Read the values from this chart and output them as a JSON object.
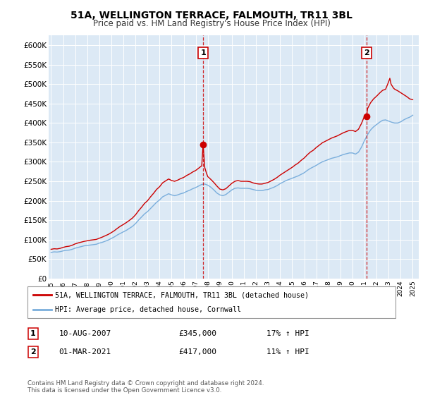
{
  "title": "51A, WELLINGTON TERRACE, FALMOUTH, TR11 3BL",
  "subtitle": "Price paid vs. HM Land Registry's House Price Index (HPI)",
  "ylabel_ticks": [
    "£0",
    "£50K",
    "£100K",
    "£150K",
    "£200K",
    "£250K",
    "£300K",
    "£350K",
    "£400K",
    "£450K",
    "£500K",
    "£550K",
    "£600K"
  ],
  "ytick_values": [
    0,
    50000,
    100000,
    150000,
    200000,
    250000,
    300000,
    350000,
    400000,
    450000,
    500000,
    550000,
    600000
  ],
  "ylim": [
    0,
    625000
  ],
  "xlim_start": 1994.8,
  "xlim_end": 2025.5,
  "xtick_years": [
    1995,
    1996,
    1997,
    1998,
    1999,
    2000,
    2001,
    2002,
    2003,
    2004,
    2005,
    2006,
    2007,
    2008,
    2009,
    2010,
    2011,
    2012,
    2013,
    2014,
    2015,
    2016,
    2017,
    2018,
    2019,
    2020,
    2021,
    2022,
    2023,
    2024,
    2025
  ],
  "background_color": "#dce9f5",
  "sale1_x": 2007.61,
  "sale1_y": 345000,
  "sale1_label": "1",
  "sale1_date": "10-AUG-2007",
  "sale1_price": "£345,000",
  "sale1_hpi": "17% ↑ HPI",
  "sale2_x": 2021.17,
  "sale2_y": 417000,
  "sale2_label": "2",
  "sale2_date": "01-MAR-2021",
  "sale2_price": "£417,000",
  "sale2_hpi": "11% ↑ HPI",
  "legend_red": "51A, WELLINGTON TERRACE, FALMOUTH, TR11 3BL (detached house)",
  "legend_blue": "HPI: Average price, detached house, Cornwall",
  "footer": "Contains HM Land Registry data © Crown copyright and database right 2024.\nThis data is licensed under the Open Government Licence v3.0.",
  "red_color": "#cc0000",
  "blue_color": "#7aaedc",
  "dot_color": "#cc0000",
  "hpi_base_points": [
    [
      1995.0,
      67000
    ],
    [
      1995.25,
      68500
    ],
    [
      1995.5,
      68000
    ],
    [
      1995.75,
      69000
    ],
    [
      1996.0,
      71000
    ],
    [
      1996.25,
      72500
    ],
    [
      1996.5,
      73000
    ],
    [
      1996.75,
      75000
    ],
    [
      1997.0,
      78000
    ],
    [
      1997.25,
      80000
    ],
    [
      1997.5,
      82000
    ],
    [
      1997.75,
      84000
    ],
    [
      1998.0,
      85000
    ],
    [
      1998.25,
      86000
    ],
    [
      1998.5,
      87000
    ],
    [
      1998.75,
      88000
    ],
    [
      1999.0,
      91000
    ],
    [
      1999.25,
      93000
    ],
    [
      1999.5,
      96000
    ],
    [
      1999.75,
      99000
    ],
    [
      2000.0,
      103000
    ],
    [
      2000.25,
      107000
    ],
    [
      2000.5,
      112000
    ],
    [
      2000.75,
      116000
    ],
    [
      2001.0,
      120000
    ],
    [
      2001.25,
      124000
    ],
    [
      2001.5,
      129000
    ],
    [
      2001.75,
      134000
    ],
    [
      2002.0,
      141000
    ],
    [
      2002.25,
      150000
    ],
    [
      2002.5,
      158000
    ],
    [
      2002.75,
      166000
    ],
    [
      2003.0,
      172000
    ],
    [
      2003.25,
      180000
    ],
    [
      2003.5,
      188000
    ],
    [
      2003.75,
      196000
    ],
    [
      2004.0,
      202000
    ],
    [
      2004.25,
      210000
    ],
    [
      2004.5,
      214000
    ],
    [
      2004.75,
      218000
    ],
    [
      2005.0,
      215000
    ],
    [
      2005.25,
      213000
    ],
    [
      2005.5,
      215000
    ],
    [
      2005.75,
      218000
    ],
    [
      2006.0,
      220000
    ],
    [
      2006.25,
      224000
    ],
    [
      2006.5,
      227000
    ],
    [
      2006.75,
      231000
    ],
    [
      2007.0,
      234000
    ],
    [
      2007.25,
      238000
    ],
    [
      2007.5,
      242000
    ],
    [
      2007.75,
      243000
    ],
    [
      2008.0,
      240000
    ],
    [
      2008.25,
      235000
    ],
    [
      2008.5,
      228000
    ],
    [
      2008.75,
      220000
    ],
    [
      2009.0,
      215000
    ],
    [
      2009.25,
      213000
    ],
    [
      2009.5,
      216000
    ],
    [
      2009.75,
      222000
    ],
    [
      2010.0,
      228000
    ],
    [
      2010.25,
      232000
    ],
    [
      2010.5,
      233000
    ],
    [
      2010.75,
      232000
    ],
    [
      2011.0,
      232000
    ],
    [
      2011.25,
      232000
    ],
    [
      2011.5,
      231000
    ],
    [
      2011.75,
      229000
    ],
    [
      2012.0,
      227000
    ],
    [
      2012.25,
      226000
    ],
    [
      2012.5,
      226000
    ],
    [
      2012.75,
      228000
    ],
    [
      2013.0,
      229000
    ],
    [
      2013.25,
      232000
    ],
    [
      2013.5,
      235000
    ],
    [
      2013.75,
      239000
    ],
    [
      2014.0,
      244000
    ],
    [
      2014.25,
      248000
    ],
    [
      2014.5,
      252000
    ],
    [
      2014.75,
      255000
    ],
    [
      2015.0,
      258000
    ],
    [
      2015.25,
      261000
    ],
    [
      2015.5,
      264000
    ],
    [
      2015.75,
      268000
    ],
    [
      2016.0,
      272000
    ],
    [
      2016.25,
      278000
    ],
    [
      2016.5,
      283000
    ],
    [
      2016.75,
      287000
    ],
    [
      2017.0,
      291000
    ],
    [
      2017.25,
      296000
    ],
    [
      2017.5,
      300000
    ],
    [
      2017.75,
      303000
    ],
    [
      2018.0,
      306000
    ],
    [
      2018.25,
      309000
    ],
    [
      2018.5,
      311000
    ],
    [
      2018.75,
      313000
    ],
    [
      2019.0,
      316000
    ],
    [
      2019.25,
      319000
    ],
    [
      2019.5,
      321000
    ],
    [
      2019.75,
      323000
    ],
    [
      2020.0,
      323000
    ],
    [
      2020.25,
      320000
    ],
    [
      2020.5,
      325000
    ],
    [
      2020.75,
      338000
    ],
    [
      2021.0,
      355000
    ],
    [
      2021.25,
      370000
    ],
    [
      2021.5,
      382000
    ],
    [
      2021.75,
      390000
    ],
    [
      2022.0,
      396000
    ],
    [
      2022.25,
      402000
    ],
    [
      2022.5,
      407000
    ],
    [
      2022.75,
      408000
    ],
    [
      2023.0,
      405000
    ],
    [
      2023.25,
      402000
    ],
    [
      2023.5,
      400000
    ],
    [
      2023.75,
      400000
    ],
    [
      2024.0,
      403000
    ],
    [
      2024.25,
      408000
    ],
    [
      2024.5,
      412000
    ],
    [
      2024.75,
      415000
    ],
    [
      2025.0,
      420000
    ]
  ],
  "red_base_points": [
    [
      1995.0,
      75000
    ],
    [
      1995.25,
      76500
    ],
    [
      1995.5,
      76000
    ],
    [
      1995.75,
      77500
    ],
    [
      1996.0,
      80000
    ],
    [
      1996.25,
      82000
    ],
    [
      1996.5,
      83000
    ],
    [
      1996.75,
      85500
    ],
    [
      1997.0,
      89000
    ],
    [
      1997.25,
      91500
    ],
    [
      1997.5,
      93500
    ],
    [
      1997.75,
      95500
    ],
    [
      1998.0,
      97000
    ],
    [
      1998.25,
      98500
    ],
    [
      1998.5,
      99500
    ],
    [
      1998.75,
      100500
    ],
    [
      1999.0,
      103500
    ],
    [
      1999.25,
      106500
    ],
    [
      1999.5,
      110000
    ],
    [
      1999.75,
      113500
    ],
    [
      2000.0,
      118000
    ],
    [
      2000.25,
      123000
    ],
    [
      2000.5,
      129000
    ],
    [
      2000.75,
      134500
    ],
    [
      2001.0,
      139000
    ],
    [
      2001.25,
      144000
    ],
    [
      2001.5,
      149500
    ],
    [
      2001.75,
      155500
    ],
    [
      2002.0,
      163500
    ],
    [
      2002.25,
      174000
    ],
    [
      2002.5,
      183000
    ],
    [
      2002.75,
      193000
    ],
    [
      2003.0,
      200000
    ],
    [
      2003.25,
      210000
    ],
    [
      2003.5,
      219000
    ],
    [
      2003.75,
      229000
    ],
    [
      2004.0,
      236000
    ],
    [
      2004.25,
      246000
    ],
    [
      2004.5,
      251000
    ],
    [
      2004.75,
      256000
    ],
    [
      2005.0,
      252000
    ],
    [
      2005.25,
      250000
    ],
    [
      2005.5,
      253000
    ],
    [
      2005.75,
      257000
    ],
    [
      2006.0,
      260000
    ],
    [
      2006.25,
      265000
    ],
    [
      2006.5,
      269000
    ],
    [
      2006.75,
      274000
    ],
    [
      2007.0,
      278000
    ],
    [
      2007.25,
      284000
    ],
    [
      2007.5,
      290000
    ],
    [
      2007.61,
      345000
    ],
    [
      2007.75,
      285000
    ],
    [
      2007.9,
      270000
    ],
    [
      2008.0,
      262000
    ],
    [
      2008.25,
      255000
    ],
    [
      2008.5,
      247000
    ],
    [
      2008.75,
      238000
    ],
    [
      2009.0,
      230000
    ],
    [
      2009.25,
      228000
    ],
    [
      2009.5,
      231000
    ],
    [
      2009.75,
      238000
    ],
    [
      2010.0,
      245000
    ],
    [
      2010.25,
      250000
    ],
    [
      2010.5,
      252000
    ],
    [
      2010.75,
      250000
    ],
    [
      2011.0,
      250000
    ],
    [
      2011.25,
      250000
    ],
    [
      2011.5,
      249000
    ],
    [
      2011.75,
      246000
    ],
    [
      2012.0,
      244000
    ],
    [
      2012.25,
      243000
    ],
    [
      2012.5,
      243000
    ],
    [
      2012.75,
      245000
    ],
    [
      2013.0,
      247000
    ],
    [
      2013.25,
      251000
    ],
    [
      2013.5,
      255000
    ],
    [
      2013.75,
      260000
    ],
    [
      2014.0,
      266000
    ],
    [
      2014.25,
      271000
    ],
    [
      2014.5,
      276000
    ],
    [
      2014.75,
      281000
    ],
    [
      2015.0,
      286000
    ],
    [
      2015.25,
      292000
    ],
    [
      2015.5,
      297000
    ],
    [
      2015.75,
      304000
    ],
    [
      2016.0,
      310000
    ],
    [
      2016.25,
      318000
    ],
    [
      2016.5,
      325000
    ],
    [
      2016.75,
      330000
    ],
    [
      2017.0,
      337000
    ],
    [
      2017.25,
      343000
    ],
    [
      2017.5,
      349000
    ],
    [
      2017.75,
      353000
    ],
    [
      2018.0,
      357000
    ],
    [
      2018.25,
      361000
    ],
    [
      2018.5,
      364000
    ],
    [
      2018.75,
      367000
    ],
    [
      2019.0,
      371000
    ],
    [
      2019.25,
      375000
    ],
    [
      2019.5,
      378000
    ],
    [
      2019.75,
      381000
    ],
    [
      2020.0,
      381000
    ],
    [
      2020.25,
      378000
    ],
    [
      2020.5,
      384000
    ],
    [
      2020.75,
      399000
    ],
    [
      2021.0,
      418000
    ],
    [
      2021.17,
      417000
    ],
    [
      2021.25,
      437000
    ],
    [
      2021.5,
      452000
    ],
    [
      2021.75,
      462000
    ],
    [
      2022.0,
      469000
    ],
    [
      2022.25,
      477000
    ],
    [
      2022.5,
      484000
    ],
    [
      2022.75,
      487000
    ],
    [
      2023.0,
      506000
    ],
    [
      2023.1,
      515000
    ],
    [
      2023.2,
      500000
    ],
    [
      2023.3,
      495000
    ],
    [
      2023.4,
      490000
    ],
    [
      2023.5,
      487000
    ],
    [
      2023.75,
      483000
    ],
    [
      2024.0,
      478000
    ],
    [
      2024.25,
      473000
    ],
    [
      2024.5,
      468000
    ],
    [
      2024.75,
      462000
    ],
    [
      2025.0,
      460000
    ]
  ]
}
